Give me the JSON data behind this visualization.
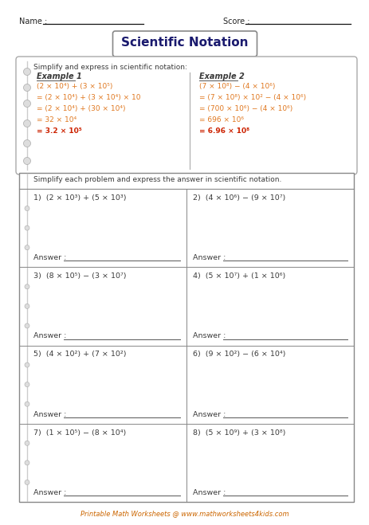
{
  "title": "Scientific Notation",
  "name_label": "Name :",
  "score_label": "Score :",
  "example_header": "Simplify and express in scientific notation:",
  "example1_title": "Example 1",
  "example1_lines": [
    "(2 × 10⁴) + (3 × 10⁵)",
    "= (2 × 10⁴) + (3 × 10⁴) × 10",
    "= (2 × 10⁴) + (30 × 10⁴)",
    "= 32 × 10⁴",
    "= 3.2 × 10⁵"
  ],
  "example2_title": "Example 2",
  "example2_lines": [
    "(7 × 10⁸) − (4 × 10⁶)",
    "= (7 × 10⁸) × 10² − (4 × 10⁶)",
    "= (700 × 10⁶) − (4 × 10⁶)",
    "= 696 × 10⁶",
    "= 6.96 × 10⁸"
  ],
  "problems_header": "Simplify each problem and express the answer in scientific notation.",
  "problems": [
    [
      "1)  (2 × 10³) + (5 × 10³)",
      "2)  (4 × 10⁶) − (9 × 10⁷)"
    ],
    [
      "3)  (8 × 10⁵) − (3 × 10⁷)",
      "4)  (5 × 10⁷) + (1 × 10⁶)"
    ],
    [
      "5)  (4 × 10²) + (7 × 10²)",
      "6)  (9 × 10²) − (6 × 10⁴)"
    ],
    [
      "7)  (1 × 10⁵) − (8 × 10⁴)",
      "8)  (5 × 10⁹) + (3 × 10⁸)"
    ]
  ],
  "answer_label": "Answer :",
  "footer": "Printable Math Worksheets @ www.mathworksheets4kids.com",
  "bg_color": "#ffffff",
  "text_color_dark": "#3a3a3a",
  "text_color_orange": "#e07820",
  "text_color_red": "#cc2200",
  "text_color_black": "#222222",
  "text_color_footer": "#cc6600",
  "grid_color": "#888888",
  "hole_color": "#bbbbbb",
  "title_text_color": "#1a1a6e"
}
